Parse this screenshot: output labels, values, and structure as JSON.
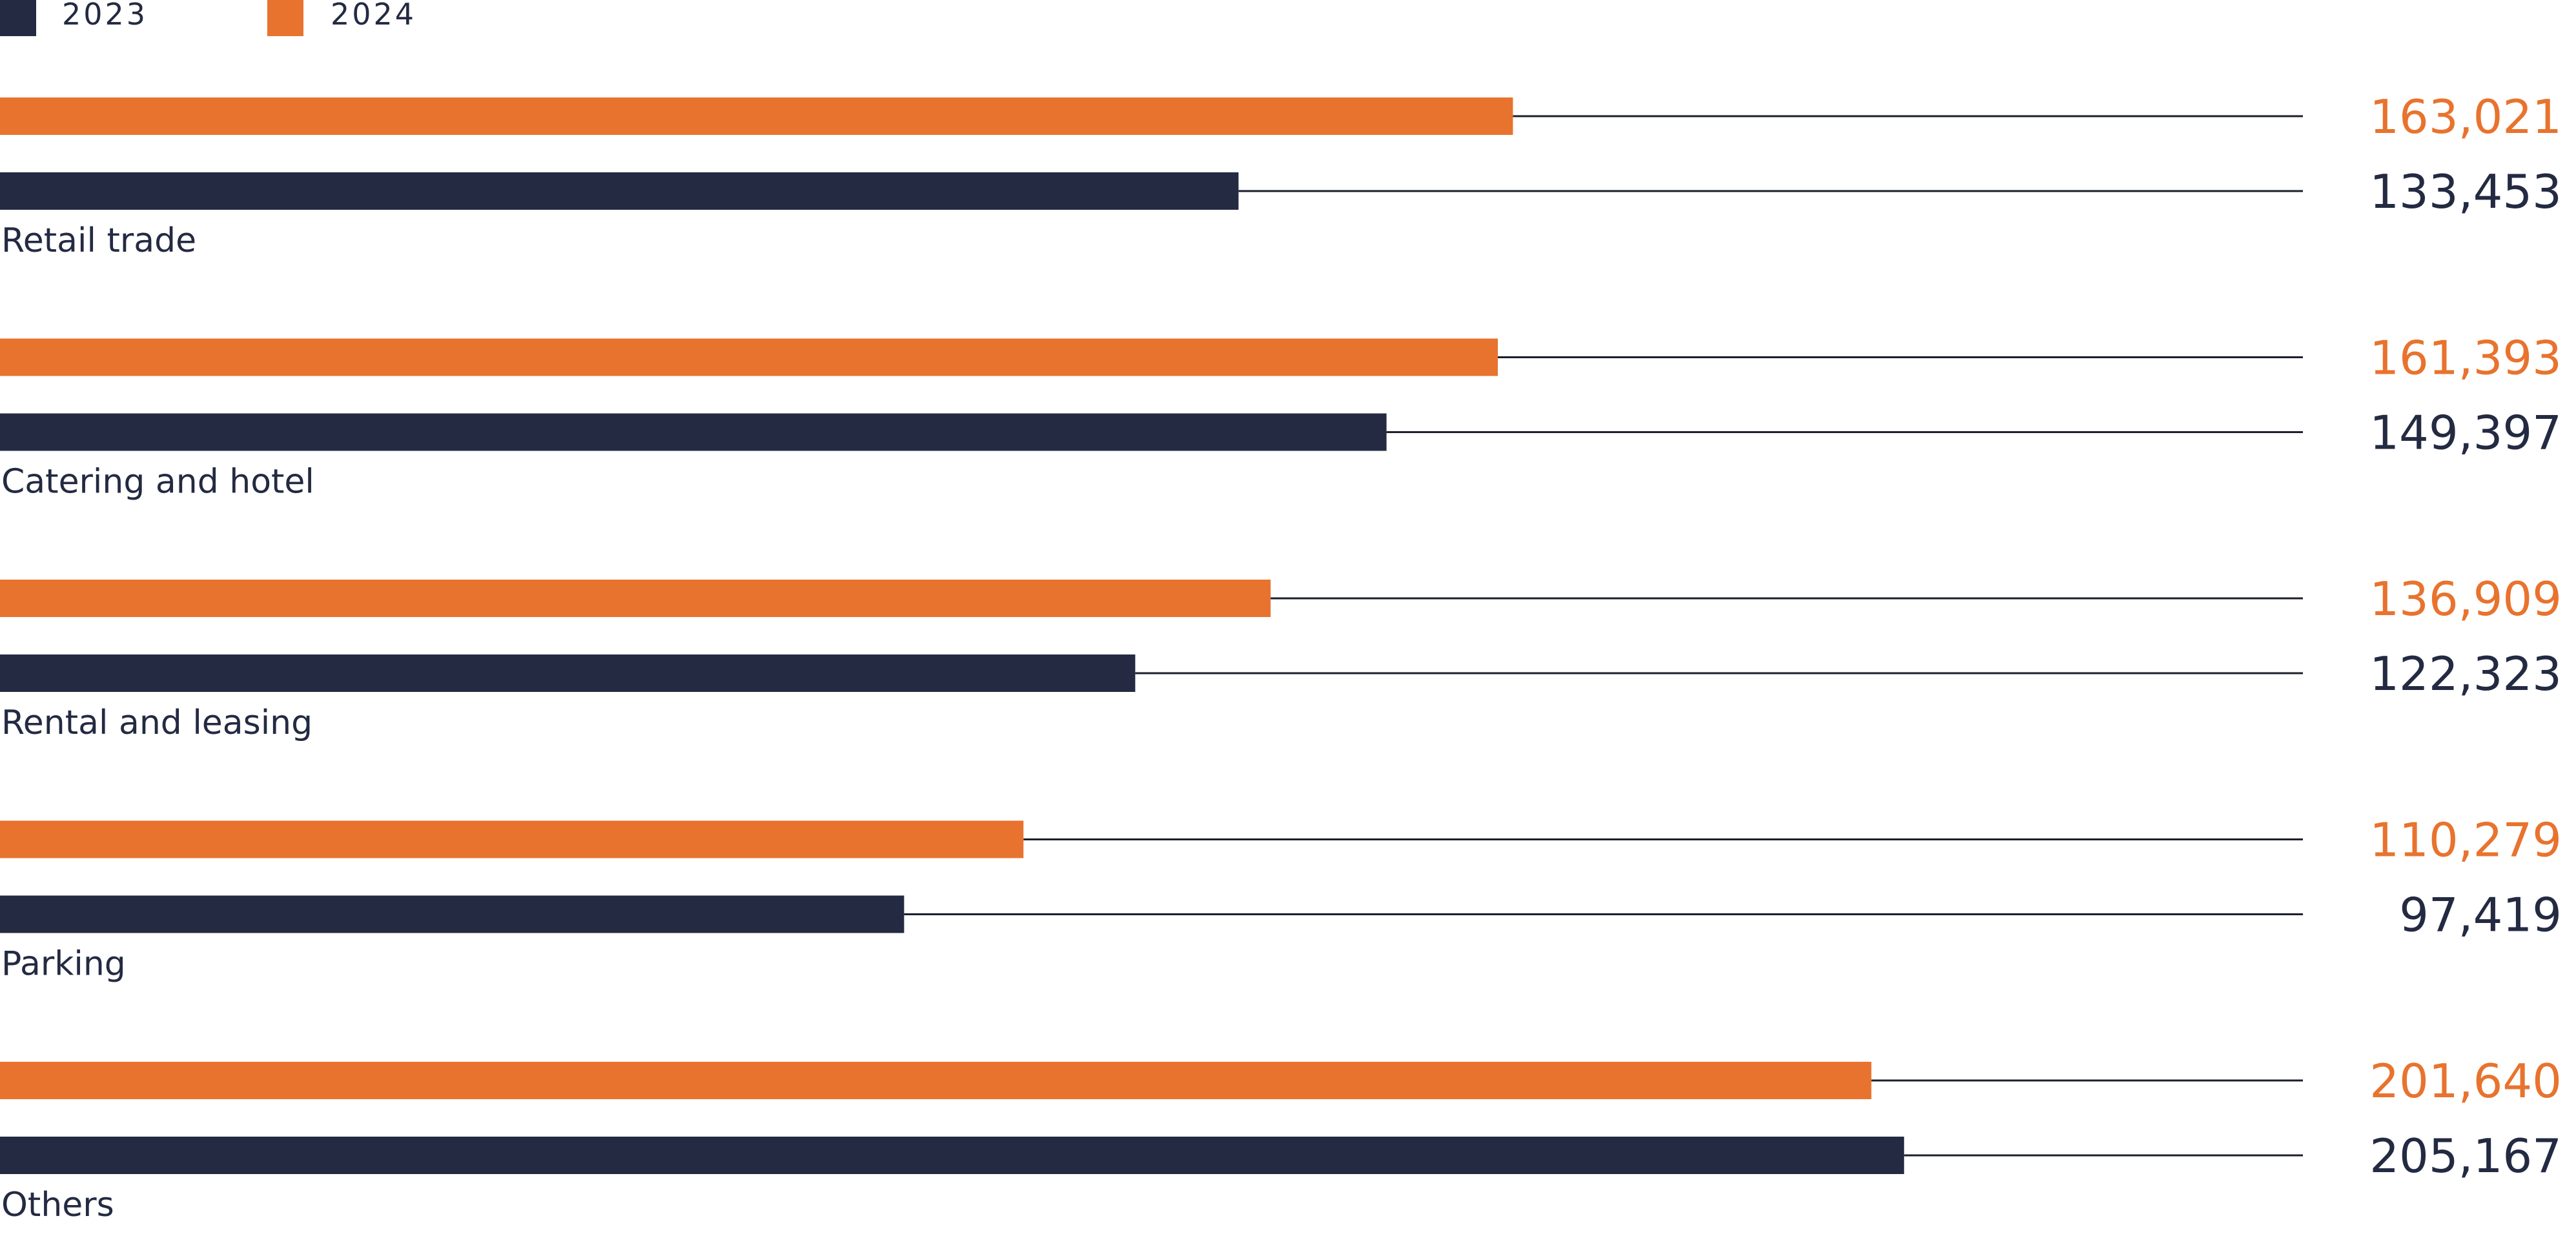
{
  "chart_data": {
    "type": "bar",
    "orientation": "horizontal",
    "categories": [
      "Retail trade",
      "Catering and hotel",
      "Rental and leasing",
      "Parking",
      "Others"
    ],
    "series": [
      {
        "name": "2024",
        "color": "#e8732e",
        "values": [
          163021,
          161393,
          136909,
          110279,
          201640
        ]
      },
      {
        "name": "2023",
        "color": "#232a42",
        "values": [
          133453,
          149397,
          122323,
          97419,
          205167
        ]
      }
    ],
    "value_labels": {
      "2024": [
        "163,021",
        "161,393",
        "136,909",
        "110,279",
        "201,640"
      ],
      "2023": [
        "133,453",
        "149,397",
        "122,323",
        "97,419",
        "205,167"
      ]
    },
    "legend": {
      "placement": "top-left",
      "items": [
        {
          "label": "2023",
          "color": "#232a42"
        },
        {
          "label": "2024",
          "color": "#e8732e"
        }
      ]
    },
    "xlim": [
      0,
      250000
    ],
    "grid": false,
    "title": "",
    "xlabel": "",
    "ylabel": ""
  }
}
